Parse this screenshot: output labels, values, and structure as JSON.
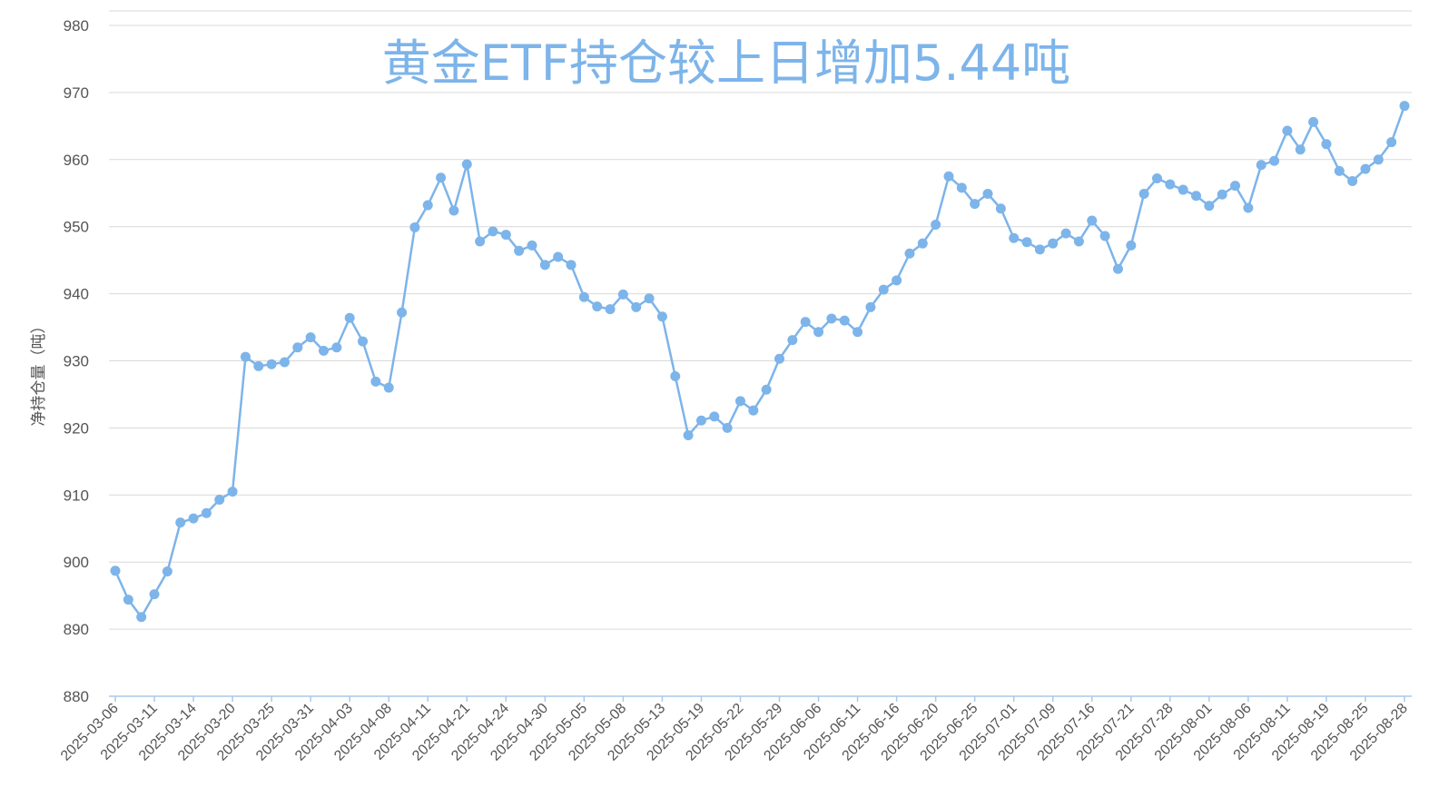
{
  "chart_data": {
    "type": "line",
    "title": "黄金ETF持仓较上日增加5.44吨",
    "ylabel": "净持仓量（吨）",
    "xlabel": "",
    "ylim": [
      880,
      980
    ],
    "yticks": [
      880,
      890,
      900,
      910,
      920,
      930,
      940,
      950,
      960,
      970,
      980
    ],
    "grid": true,
    "color": "#7db4ea",
    "x_tick_labels": [
      "2025-03-06",
      "2025-03-11",
      "2025-03-14",
      "2025-03-20",
      "2025-03-25",
      "2025-03-31",
      "2025-04-03",
      "2025-04-08",
      "2025-04-11",
      "2025-04-21",
      "2025-04-24",
      "2025-04-30",
      "2025-05-05",
      "2025-05-08",
      "2025-05-13",
      "2025-05-19",
      "2025-05-22",
      "2025-05-29",
      "2025-06-06",
      "2025-06-11",
      "2025-06-16",
      "2025-06-20",
      "2025-06-25",
      "2025-07-01",
      "2025-07-09",
      "2025-07-16",
      "2025-07-21",
      "2025-07-28",
      "2025-08-01",
      "2025-08-06",
      "2025-08-11",
      "2025-08-19",
      "2025-08-25",
      "2025-08-28"
    ],
    "series": [
      {
        "values": [
          898.7,
          894.4,
          891.8,
          895.2,
          898.6,
          905.9,
          906.5,
          907.3,
          909.3,
          910.5,
          930.6,
          929.2,
          929.5,
          929.8,
          932.0,
          933.5,
          931.5,
          932.0,
          936.4,
          932.9,
          926.9,
          926.0,
          937.2,
          949.9,
          953.2,
          957.3,
          952.4,
          959.3,
          947.8,
          949.3,
          948.8,
          946.4,
          947.2,
          944.3,
          945.5,
          944.3,
          939.5,
          938.1,
          937.7,
          939.9,
          938.0,
          939.3,
          936.6,
          927.7,
          918.9,
          921.1,
          921.7,
          920.0,
          924.0,
          922.6,
          925.7,
          930.3,
          933.1,
          935.8,
          934.3,
          936.3,
          936.0,
          934.3,
          938.0,
          940.6,
          942.0,
          946.0,
          947.5,
          950.3,
          957.5,
          955.8,
          953.4,
          954.9,
          952.7,
          948.3,
          947.7,
          946.6,
          947.5,
          949.0,
          947.8,
          950.9,
          948.6,
          943.7,
          947.2,
          954.9,
          957.2,
          956.3,
          955.5,
          954.6,
          953.1,
          954.8,
          956.1,
          952.8,
          959.2,
          959.8,
          964.3,
          961.5,
          965.6,
          962.3,
          958.3,
          956.8,
          958.6,
          960.0,
          962.6,
          968.0
        ]
      }
    ]
  }
}
